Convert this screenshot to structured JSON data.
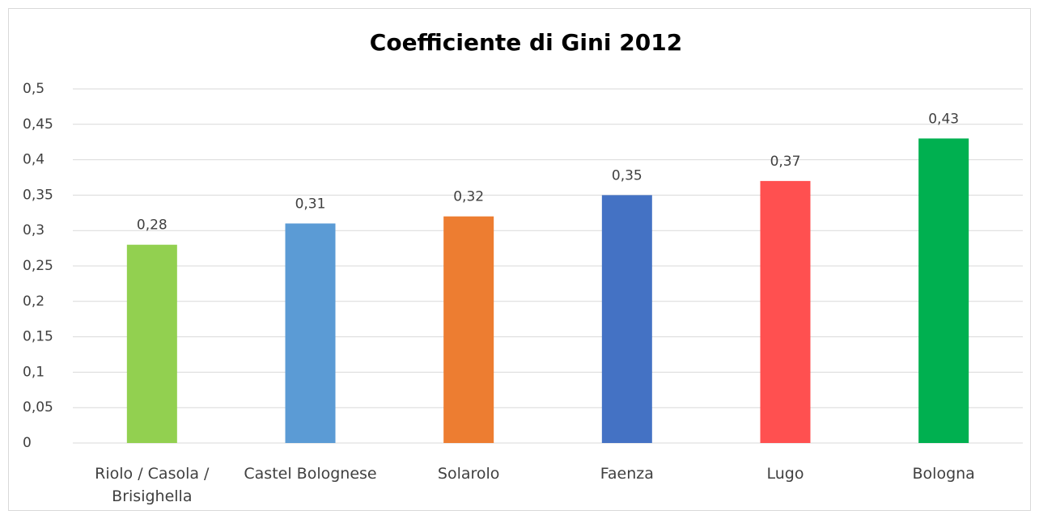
{
  "chart_data": {
    "type": "bar",
    "title": "Coefficiente di Gini 2012",
    "categories": [
      "Riolo / Casola / Brisighella",
      "Castel Bolognese",
      "Solarolo",
      "Faenza",
      "Lugo",
      "Bologna"
    ],
    "values": [
      0.28,
      0.31,
      0.32,
      0.35,
      0.37,
      0.43
    ],
    "value_labels": [
      "0,28",
      "0,31",
      "0,32",
      "0,35",
      "0,37",
      "0,43"
    ],
    "colors": [
      "#92d050",
      "#5b9bd5",
      "#ed7d31",
      "#4472c4",
      "#ff5050",
      "#00b050"
    ],
    "ylim": [
      0,
      0.5
    ],
    "yticks": [
      0,
      {
        "value": 0.05,
        "label": "0,05"
      },
      {
        "value": 0.1,
        "label": "0,1"
      },
      {
        "value": 0.15,
        "label": "0,15"
      },
      {
        "value": 0.2,
        "label": "0,2"
      },
      {
        "value": 0.25,
        "label": "0,25"
      },
      {
        "value": 0.3,
        "label": "0,3"
      },
      {
        "value": 0.35,
        "label": "0,35"
      },
      {
        "value": 0.4,
        "label": "0,4"
      },
      {
        "value": 0.45,
        "label": "0,45"
      },
      {
        "value": 0.5,
        "label": "0,5"
      }
    ],
    "grid": true
  }
}
